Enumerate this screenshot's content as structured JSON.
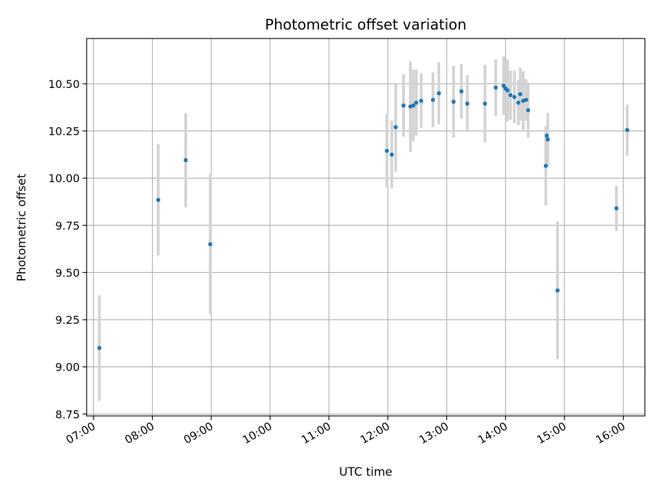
{
  "chart_data": {
    "type": "scatter",
    "title": "Photometric offset variation",
    "xlabel": "UTC time",
    "ylabel": "Photometric offset",
    "xlim": [
      "06:53",
      "16:22"
    ],
    "ylim": [
      8.74,
      10.74
    ],
    "x_ticks": [
      "07:00",
      "08:00",
      "09:00",
      "10:00",
      "11:00",
      "12:00",
      "13:00",
      "14:00",
      "15:00",
      "16:00"
    ],
    "y_ticks": [
      "8.75",
      "9.00",
      "9.25",
      "9.50",
      "9.75",
      "10.00",
      "10.25",
      "10.50"
    ],
    "grid": true,
    "colors": {
      "points": "#1f77b4",
      "errorbars": "#d3d3d3",
      "grid": "#b0b0b0"
    },
    "points": [
      {
        "x": "07:06",
        "y": 9.1,
        "err": 0.28
      },
      {
        "x": "08:06",
        "y": 9.885,
        "err": 0.295
      },
      {
        "x": "08:34",
        "y": 10.095,
        "err": 0.25
      },
      {
        "x": "08:59",
        "y": 9.65,
        "err": 0.37
      },
      {
        "x": "11:59",
        "y": 10.145,
        "err": 0.195
      },
      {
        "x": "12:04",
        "y": 10.125,
        "err": 0.18
      },
      {
        "x": "12:08",
        "y": 10.27,
        "err": 0.235
      },
      {
        "x": "12:16",
        "y": 10.385,
        "err": 0.165
      },
      {
        "x": "12:23",
        "y": 10.38,
        "err": 0.24
      },
      {
        "x": "12:26",
        "y": 10.385,
        "err": 0.19
      },
      {
        "x": "12:29",
        "y": 10.4,
        "err": 0.175
      },
      {
        "x": "12:34",
        "y": 10.41,
        "err": 0.145
      },
      {
        "x": "12:46",
        "y": 10.415,
        "err": 0.145
      },
      {
        "x": "12:52",
        "y": 10.45,
        "err": 0.165
      },
      {
        "x": "13:07",
        "y": 10.405,
        "err": 0.19
      },
      {
        "x": "13:15",
        "y": 10.46,
        "err": 0.145
      },
      {
        "x": "13:21",
        "y": 10.395,
        "err": 0.15
      },
      {
        "x": "13:39",
        "y": 10.395,
        "err": 0.205
      },
      {
        "x": "13:50",
        "y": 10.48,
        "err": 0.15
      },
      {
        "x": "13:58",
        "y": 10.49,
        "err": 0.155
      },
      {
        "x": "14:00",
        "y": 10.475,
        "err": 0.14
      },
      {
        "x": "14:02",
        "y": 10.465,
        "err": 0.165
      },
      {
        "x": "14:05",
        "y": 10.44,
        "err": 0.13
      },
      {
        "x": "14:09",
        "y": 10.43,
        "err": 0.14
      },
      {
        "x": "14:13",
        "y": 10.4,
        "err": 0.12
      },
      {
        "x": "14:15",
        "y": 10.445,
        "err": 0.14
      },
      {
        "x": "14:18",
        "y": 10.41,
        "err": 0.155
      },
      {
        "x": "14:21",
        "y": 10.415,
        "err": 0.11
      },
      {
        "x": "14:23",
        "y": 10.36,
        "err": 0.145
      },
      {
        "x": "14:41",
        "y": 10.065,
        "err": 0.21
      },
      {
        "x": "14:42",
        "y": 10.225,
        "err": 0.05
      },
      {
        "x": "14:43",
        "y": 10.205,
        "err": 0.14
      },
      {
        "x": "14:53",
        "y": 9.405,
        "err": 0.365
      },
      {
        "x": "15:53",
        "y": 9.84,
        "err": 0.12
      },
      {
        "x": "16:04",
        "y": 10.255,
        "err": 0.135
      }
    ]
  }
}
